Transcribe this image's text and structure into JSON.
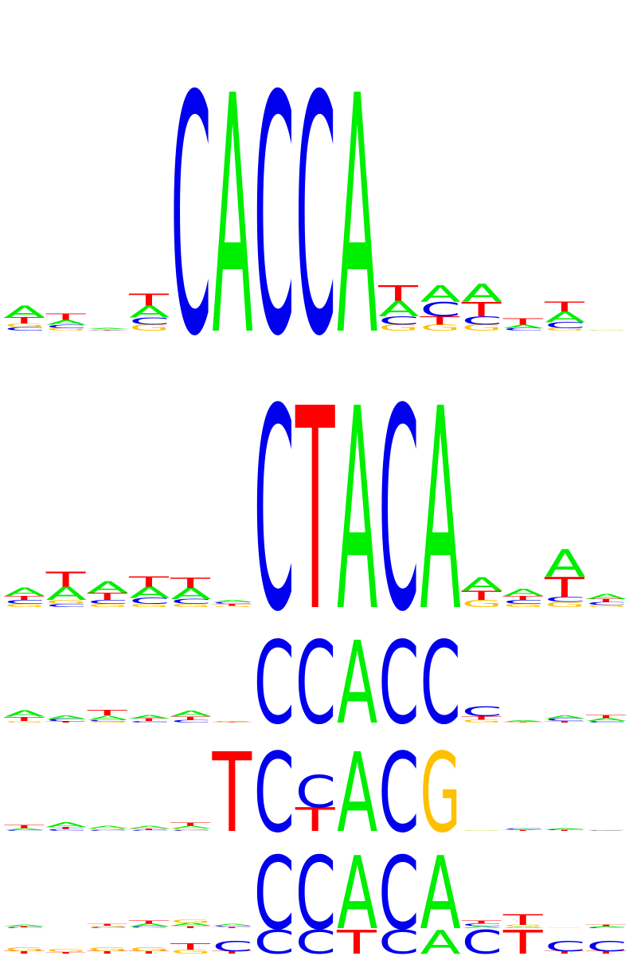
{
  "colors": {
    "A": "#00ee00",
    "C": "#0000ee",
    "G": "#ffc000",
    "T": "#ff0000"
  },
  "logos": [
    {
      "name": "logo-1",
      "columns": [
        [
          [
            "C",
            0.03
          ],
          [
            "G",
            0.03
          ],
          [
            "T",
            0.05
          ],
          [
            "A",
            0.1
          ]
        ],
        [
          [
            "G",
            0.02
          ],
          [
            "C",
            0.03
          ],
          [
            "A",
            0.04
          ],
          [
            "T",
            0.05
          ]
        ],
        [
          [
            "T",
            0.005
          ],
          [
            "C",
            0.005
          ],
          [
            "G",
            0.005
          ],
          [
            "A",
            0.01
          ]
        ],
        [
          [
            "G",
            0.05
          ],
          [
            "C",
            0.06
          ],
          [
            "A",
            0.1
          ],
          [
            "T",
            0.1
          ]
        ],
        [
          [
            "C",
            2.0
          ]
        ],
        [
          [
            "A",
            2.0
          ]
        ],
        [
          [
            "C",
            2.0
          ]
        ],
        [
          [
            "C",
            2.0
          ]
        ],
        [
          [
            "A",
            2.0
          ]
        ],
        [
          [
            "G",
            0.05
          ],
          [
            "C",
            0.07
          ],
          [
            "A",
            0.13
          ],
          [
            "T",
            0.13
          ]
        ],
        [
          [
            "G",
            0.05
          ],
          [
            "T",
            0.07
          ],
          [
            "C",
            0.12
          ],
          [
            "A",
            0.14
          ]
        ],
        [
          [
            "G",
            0.05
          ],
          [
            "C",
            0.07
          ],
          [
            "T",
            0.12
          ],
          [
            "A",
            0.15
          ]
        ],
        [
          [
            "C",
            0.02
          ],
          [
            "A",
            0.03
          ],
          [
            "T",
            0.05
          ]
        ],
        [
          [
            "G",
            0.02
          ],
          [
            "C",
            0.05
          ],
          [
            "A",
            0.09
          ],
          [
            "T",
            0.08
          ]
        ],
        [
          [
            "A",
            0.005
          ],
          [
            "G",
            0.005
          ]
        ]
      ]
    },
    {
      "name": "logo-2",
      "columns": [
        [
          [
            "G",
            0.03
          ],
          [
            "C",
            0.04
          ],
          [
            "T",
            0.04
          ],
          [
            "A",
            0.08
          ]
        ],
        [
          [
            "C",
            0.03
          ],
          [
            "G",
            0.04
          ],
          [
            "A",
            0.13
          ],
          [
            "T",
            0.15
          ]
        ],
        [
          [
            "G",
            0.03
          ],
          [
            "C",
            0.04
          ],
          [
            "T",
            0.07
          ],
          [
            "A",
            0.11
          ]
        ],
        [
          [
            "G",
            0.03
          ],
          [
            "C",
            0.06
          ],
          [
            "A",
            0.11
          ],
          [
            "T",
            0.1
          ]
        ],
        [
          [
            "G",
            0.03
          ],
          [
            "C",
            0.05
          ],
          [
            "A",
            0.11
          ],
          [
            "T",
            0.1
          ]
        ],
        [
          [
            "G",
            0.01
          ],
          [
            "T",
            0.02
          ],
          [
            "C",
            0.02
          ],
          [
            "A",
            0.02
          ]
        ],
        [
          [
            "C",
            2.0
          ]
        ],
        [
          [
            "T",
            2.0
          ]
        ],
        [
          [
            "A",
            2.0
          ]
        ],
        [
          [
            "C",
            2.0
          ]
        ],
        [
          [
            "A",
            2.0
          ]
        ],
        [
          [
            "G",
            0.07
          ],
          [
            "T",
            0.09
          ],
          [
            "A",
            0.13
          ]
        ],
        [
          [
            "G",
            0.03
          ],
          [
            "C",
            0.04
          ],
          [
            "T",
            0.04
          ],
          [
            "A",
            0.07
          ]
        ],
        [
          [
            "G",
            0.05
          ],
          [
            "C",
            0.05
          ],
          [
            "T",
            0.2
          ],
          [
            "A",
            0.27
          ]
        ],
        [
          [
            "G",
            0.02
          ],
          [
            "C",
            0.03
          ],
          [
            "T",
            0.03
          ],
          [
            "A",
            0.05
          ]
        ]
      ]
    },
    {
      "name": "logo-3",
      "columns": [
        [
          [
            "G",
            0.04
          ],
          [
            "T",
            0.1
          ],
          [
            "A",
            0.15
          ]
        ],
        [
          [
            "T",
            0.03
          ],
          [
            "C",
            0.06
          ],
          [
            "A",
            0.08
          ]
        ],
        [
          [
            "G",
            0.03
          ],
          [
            "C",
            0.04
          ],
          [
            "A",
            0.1
          ],
          [
            "T",
            0.14
          ]
        ],
        [
          [
            "C",
            0.04
          ],
          [
            "T",
            0.06
          ],
          [
            "A",
            0.08
          ]
        ],
        [
          [
            "C",
            0.06
          ],
          [
            "T",
            0.09
          ],
          [
            "A",
            0.14
          ]
        ],
        [
          [
            "G",
            0.01
          ],
          [
            "T",
            0.01
          ],
          [
            "C",
            0.01
          ],
          [
            "A",
            0.01
          ]
        ],
        [
          [
            "C",
            2.0
          ]
        ],
        [
          [
            "C",
            2.0
          ]
        ],
        [
          [
            "A",
            2.0
          ]
        ],
        [
          [
            "C",
            2.0
          ]
        ],
        [
          [
            "C",
            2.0
          ]
        ],
        [
          [
            "G",
            0.07
          ],
          [
            "T",
            0.08
          ],
          [
            "C",
            0.24
          ]
        ],
        [
          [
            "T",
            0.01
          ],
          [
            "G",
            0.01
          ],
          [
            "C",
            0.01
          ],
          [
            "A",
            0.02
          ]
        ],
        [
          [
            "T",
            0.04
          ],
          [
            "C",
            0.06
          ],
          [
            "A",
            0.07
          ]
        ],
        [
          [
            "C",
            0.04
          ],
          [
            "A",
            0.07
          ],
          [
            "T",
            0.07
          ]
        ]
      ]
    },
    {
      "name": "logo-4",
      "columns": [
        [
          [
            "C",
            0.02
          ],
          [
            "A",
            0.05
          ],
          [
            "T",
            0.07
          ]
        ],
        [
          [
            "C",
            0.05
          ],
          [
            "T",
            0.05
          ],
          [
            "A",
            0.11
          ]
        ],
        [
          [
            "C",
            0.03
          ],
          [
            "G",
            0.03
          ],
          [
            "A",
            0.07
          ]
        ],
        [
          [
            "C",
            0.02
          ],
          [
            "T",
            0.04
          ],
          [
            "A",
            0.06
          ]
        ],
        [
          [
            "C",
            0.02
          ],
          [
            "G",
            0.04
          ],
          [
            "A",
            0.07
          ],
          [
            "T",
            0.08
          ]
        ],
        [
          [
            "T",
            2.0
          ]
        ],
        [
          [
            "C",
            2.0
          ]
        ],
        [
          [
            "T",
            0.6
          ],
          [
            "C",
            0.8
          ]
        ],
        [
          [
            "A",
            2.0
          ]
        ],
        [
          [
            "C",
            2.0
          ]
        ],
        [
          [
            "G",
            2.0
          ]
        ],
        [
          [
            "A",
            0.01
          ],
          [
            "G",
            0.01
          ]
        ],
        [
          [
            "T",
            0.02
          ],
          [
            "A",
            0.02
          ],
          [
            "C",
            0.03
          ]
        ],
        [
          [
            "T",
            0.02
          ],
          [
            "C",
            0.02
          ],
          [
            "A",
            0.03
          ]
        ],
        [
          [
            "C",
            0.01
          ],
          [
            "G",
            0.01
          ],
          [
            "A",
            0.01
          ]
        ]
      ]
    },
    {
      "name": "logo-5",
      "columns": [
        [
          [
            "C",
            0.02
          ],
          [
            "T",
            0.02
          ],
          [
            "A",
            0.05
          ]
        ],
        [
          [
            "A",
            0.005
          ]
        ],
        [
          [
            "C",
            0.03
          ],
          [
            "G",
            0.03
          ],
          [
            "T",
            0.05
          ]
        ],
        [
          [
            "G",
            0.02
          ],
          [
            "C",
            0.02
          ],
          [
            "A",
            0.08
          ],
          [
            "T",
            0.09
          ]
        ],
        [
          [
            "T",
            0.06
          ],
          [
            "A",
            0.08
          ],
          [
            "G",
            0.1
          ]
        ],
        [
          [
            "T",
            0.03
          ],
          [
            "C",
            0.03
          ],
          [
            "A",
            0.05
          ]
        ],
        [
          [
            "C",
            2.0
          ]
        ],
        [
          [
            "C",
            2.0
          ]
        ],
        [
          [
            "A",
            2.0
          ]
        ],
        [
          [
            "C",
            2.0
          ]
        ],
        [
          [
            "A",
            2.0
          ]
        ],
        [
          [
            "A",
            0.05
          ],
          [
            "C",
            0.07
          ],
          [
            "T",
            0.09
          ]
        ],
        [
          [
            "A",
            0.04
          ],
          [
            "G",
            0.05
          ],
          [
            "T",
            0.3
          ]
        ],
        [
          [
            "G",
            0.01
          ]
        ],
        [
          [
            "C",
            0.02
          ],
          [
            "A",
            0.03
          ],
          [
            "T",
            0.04
          ]
        ]
      ]
    },
    {
      "name": "logo-6",
      "columns": [
        [
          [
            "T",
            0.03
          ],
          [
            "G",
            0.05
          ]
        ],
        [
          [
            "T",
            0.02
          ],
          [
            "G",
            0.04
          ]
        ],
        [
          [
            "T",
            0.03
          ],
          [
            "G",
            0.05
          ]
        ],
        [
          [
            "T",
            0.03
          ],
          [
            "G",
            0.05
          ]
        ],
        [
          [
            "G",
            0.05
          ],
          [
            "T",
            0.08
          ]
        ],
        [
          [
            "T",
            0.03
          ],
          [
            "C",
            0.13
          ]
        ],
        [
          [
            "C",
            0.3
          ]
        ],
        [
          [
            "C",
            0.3
          ]
        ],
        [
          [
            "T",
            0.3
          ]
        ],
        [
          [
            "C",
            0.3
          ]
        ],
        [
          [
            "A",
            0.3
          ]
        ],
        [
          [
            "C",
            0.3
          ]
        ],
        [
          [
            "T",
            0.3
          ]
        ],
        [
          [
            "T",
            0.03
          ],
          [
            "C",
            0.13
          ]
        ],
        [
          [
            "T",
            0.03
          ],
          [
            "C",
            0.13
          ]
        ]
      ]
    }
  ]
}
